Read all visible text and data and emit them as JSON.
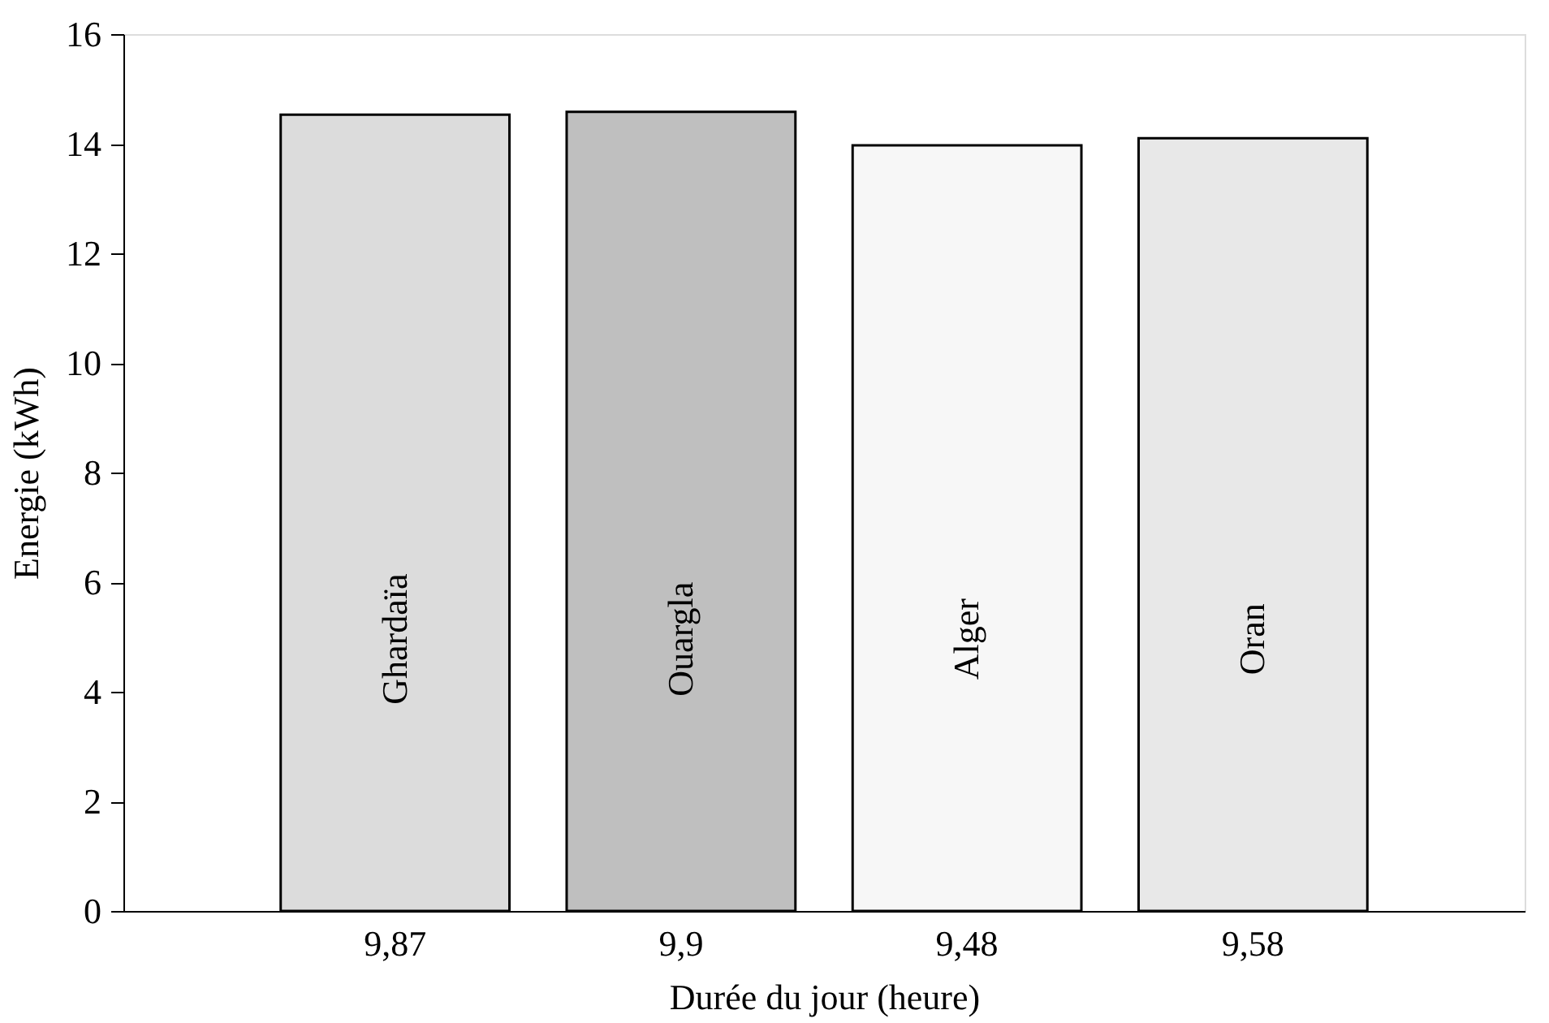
{
  "chart_data": {
    "type": "bar",
    "xlabel": "Durée du jour (heure)",
    "ylabel": "Energie (kWh)",
    "categories": [
      "9,87",
      "9,9",
      "9,48",
      "9,58"
    ],
    "values": [
      14.53,
      14.58,
      13.97,
      14.1
    ],
    "colors": [
      "#dcdcdc",
      "#bfbfbf",
      "#f7f7f7",
      "#e8e8e8"
    ],
    "ylim": [
      0,
      16
    ],
    "yticks": [
      0,
      2,
      4,
      6,
      8,
      10,
      12,
      14,
      16
    ],
    "grid": false,
    "annotations": [
      "Ghardaïa",
      "Ouargla",
      "Alger",
      "Oran"
    ]
  }
}
